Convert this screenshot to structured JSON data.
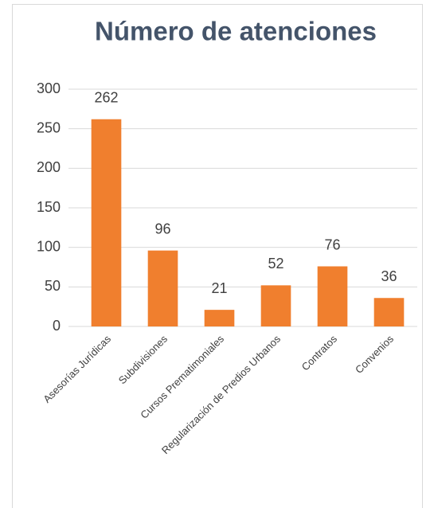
{
  "chart_data": {
    "type": "bar",
    "title": "Número de atenciones",
    "categories": [
      "Asesorías Jurídicas",
      "Subdivisiones",
      "Cursos Prematimoniales",
      "Regularización de Predios Urbanos",
      "Contratos",
      "Convenios"
    ],
    "values": [
      262,
      96,
      21,
      52,
      76,
      36
    ],
    "color": "#f07f2e",
    "ylim": [
      0,
      300
    ],
    "yticks": [
      0,
      50,
      100,
      150,
      200,
      250,
      300
    ],
    "grid": true
  }
}
